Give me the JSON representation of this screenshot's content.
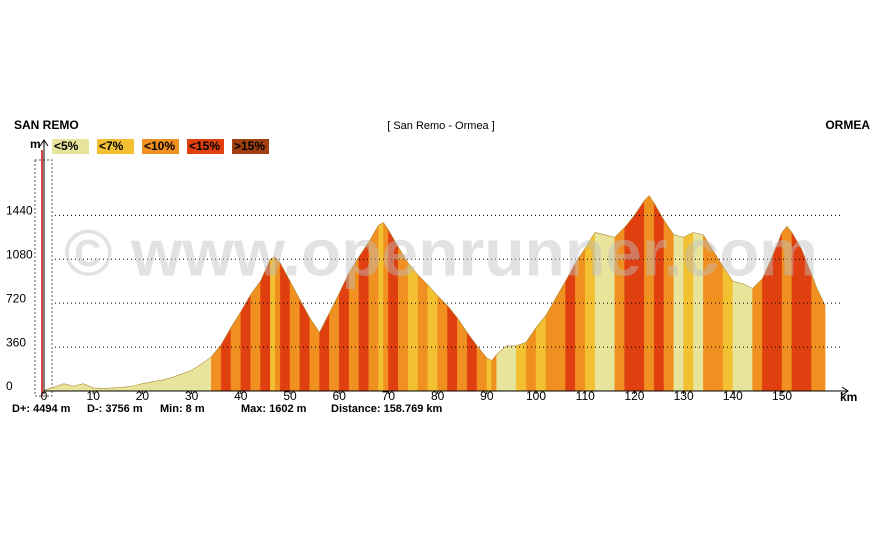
{
  "chart_data": {
    "type": "elevation-profile",
    "title": "[ San Remo - Ormea ]",
    "start_label": "SAN REMO",
    "end_label": "ORMEA",
    "watermark": "© www.openrunner.com",
    "y_label": "m",
    "x_label": "km",
    "legend": [
      {
        "label": "<5%",
        "color": "#e8e49c"
      },
      {
        "label": "<7%",
        "color": "#f2c030"
      },
      {
        "label": "<10%",
        "color": "#f09020"
      },
      {
        "label": "<15%",
        "color": "#e04010"
      },
      {
        "label": ">15%",
        "color": "#a04010"
      }
    ],
    "stats": [
      "D+: 4494 m",
      "D-: 3756 m",
      "Min: 8 m",
      "Max: 1602 m",
      "Distance: 158.769 km"
    ],
    "xlim": [
      0,
      163
    ],
    "ylim": [
      0,
      2000
    ],
    "xticks": [
      0,
      10,
      20,
      30,
      40,
      50,
      60,
      70,
      80,
      90,
      100,
      110,
      120,
      130,
      140,
      150
    ],
    "yticks": [
      0,
      360,
      720,
      1080,
      1440
    ],
    "grid": true,
    "x": [
      0,
      2,
      4,
      6,
      8,
      10,
      12,
      14,
      16,
      18,
      20,
      22,
      24,
      26,
      28,
      30,
      32,
      34,
      36,
      38,
      40,
      42,
      44,
      46,
      47,
      48,
      50,
      52,
      54,
      56,
      58,
      60,
      62,
      64,
      66,
      68,
      69,
      70,
      72,
      74,
      76,
      78,
      80,
      82,
      84,
      86,
      88,
      90,
      91,
      92,
      94,
      96,
      98,
      100,
      102,
      104,
      106,
      108,
      110,
      112,
      114,
      116,
      118,
      120,
      122,
      123,
      124,
      126,
      128,
      130,
      132,
      134,
      136,
      138,
      140,
      142,
      144,
      146,
      148,
      150,
      151,
      152,
      154,
      156,
      157,
      158.769
    ],
    "series": [
      {
        "values": [
          8,
          30,
          60,
          40,
          60,
          25,
          20,
          25,
          30,
          40,
          60,
          75,
          90,
          110,
          140,
          170,
          220,
          280,
          380,
          520,
          650,
          790,
          900,
          1080,
          1100,
          1050,
          900,
          750,
          600,
          480,
          640,
          800,
          970,
          1100,
          1220,
          1360,
          1380,
          1320,
          1180,
          1050,
          950,
          870,
          780,
          700,
          600,
          480,
          370,
          270,
          250,
          300,
          370,
          370,
          400,
          520,
          620,
          760,
          900,
          1050,
          1170,
          1300,
          1280,
          1260,
          1340,
          1440,
          1560,
          1602,
          1540,
          1400,
          1280,
          1260,
          1300,
          1280,
          1150,
          1020,
          900,
          880,
          840,
          920,
          1100,
          1300,
          1350,
          1300,
          1160,
          960,
          850,
          700
        ],
        "point_colors": [
          "#e8e49c",
          "#e8e49c",
          "#e8e49c",
          "#e8e49c",
          "#e8e49c",
          "#e8e49c",
          "#e8e49c",
          "#e8e49c",
          "#e8e49c",
          "#e8e49c",
          "#e8e49c",
          "#e8e49c",
          "#e8e49c",
          "#e8e49c",
          "#e8e49c",
          "#e8e49c",
          "#e8e49c",
          "#e8e49c",
          "#f09020",
          "#e04010",
          "#f09020",
          "#e04010",
          "#f09020",
          "#e04010",
          "#f2c030",
          "#f09020",
          "#e04010",
          "#f09020",
          "#e04010",
          "#f09020",
          "#e04010",
          "#f09020",
          "#e04010",
          "#f09020",
          "#e04010",
          "#f09020",
          "#f2c030",
          "#f09020",
          "#e04010",
          "#f09020",
          "#f2c030",
          "#f09020",
          "#f2c030",
          "#f09020",
          "#e04010",
          "#f09020",
          "#e04010",
          "#f09020",
          "#f2c030",
          "#f09020",
          "#e8e49c",
          "#e8e49c",
          "#f2c030",
          "#f09020",
          "#f2c030",
          "#f09020",
          "#f09020",
          "#e04010",
          "#f09020",
          "#f2c030",
          "#e8e49c",
          "#e8e49c",
          "#f09020",
          "#e04010",
          "#e04010",
          "#f09020",
          "#f09020",
          "#e04010",
          "#f09020",
          "#e8e49c",
          "#f2c030",
          "#e8e49c",
          "#f09020",
          "#f09020",
          "#f2c030",
          "#e8e49c",
          "#e8e49c",
          "#f09020",
          "#e04010",
          "#e04010",
          "#f09020",
          "#f09020",
          "#e04010",
          "#e04010",
          "#f09020",
          "#f09020"
        ]
      }
    ]
  }
}
